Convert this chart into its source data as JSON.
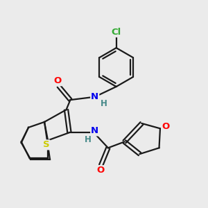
{
  "bg_color": "#ebebeb",
  "bond_color": "#1a1a1a",
  "bond_width": 1.6,
  "atom_colors": {
    "N": "#0000ee",
    "O": "#ff0000",
    "S": "#cccc00",
    "Cl": "#33aa33",
    "H": "#448888",
    "C": "#1a1a1a"
  },
  "font_size_atom": 9.5,
  "font_size_small": 8.5
}
